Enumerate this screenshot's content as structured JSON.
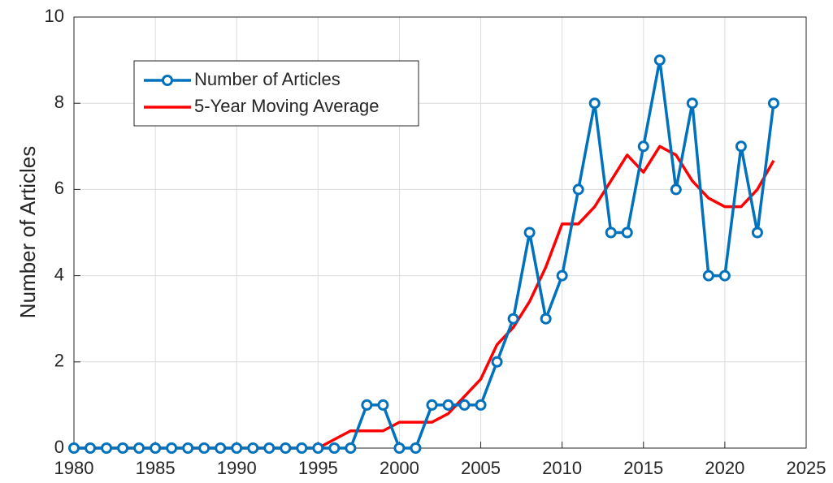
{
  "chart_data": {
    "type": "line",
    "ylabel": "Number of Articles",
    "x": [
      1980,
      1981,
      1982,
      1983,
      1984,
      1985,
      1986,
      1987,
      1988,
      1989,
      1990,
      1991,
      1992,
      1993,
      1994,
      1995,
      1996,
      1997,
      1998,
      1999,
      2000,
      2001,
      2002,
      2003,
      2004,
      2005,
      2006,
      2007,
      2008,
      2009,
      2010,
      2011,
      2012,
      2013,
      2014,
      2015,
      2016,
      2017,
      2018,
      2019,
      2020,
      2021,
      2022,
      2023
    ],
    "series": [
      {
        "name": "Number of Articles",
        "color": "#0072bd",
        "marker": "circle",
        "values": [
          0,
          0,
          0,
          0,
          0,
          0,
          0,
          0,
          0,
          0,
          0,
          0,
          0,
          0,
          0,
          0,
          0,
          0,
          1,
          1,
          0,
          0,
          1,
          1,
          1,
          1,
          2,
          3,
          5,
          3,
          4,
          6,
          8,
          5,
          5,
          7,
          9,
          6,
          8,
          4,
          4,
          7,
          5,
          8
        ]
      },
      {
        "name": "5-Year Moving Average",
        "color": "#ff0000",
        "values": [
          0,
          0,
          0,
          0,
          0,
          0,
          0,
          0,
          0,
          0,
          0,
          0,
          0,
          0,
          0,
          0,
          0.2,
          0.4,
          0.4,
          0.4,
          0.6,
          0.6,
          0.6,
          0.8,
          1.2,
          1.6,
          2.4,
          2.8,
          3.4,
          4.2,
          5.2,
          5.2,
          5.6,
          6.2,
          6.8,
          6.4,
          7,
          6.8,
          6.2,
          5.8,
          5.6,
          5.6,
          6,
          6.67
        ]
      }
    ],
    "xlim": [
      1980,
      2025
    ],
    "xticks": [
      1980,
      1985,
      1990,
      1995,
      2000,
      2005,
      2010,
      2015,
      2020,
      2025
    ],
    "ylim": [
      0,
      10
    ],
    "yticks": [
      0,
      2,
      4,
      6,
      8,
      10
    ],
    "grid": true,
    "legend": "upper left"
  }
}
